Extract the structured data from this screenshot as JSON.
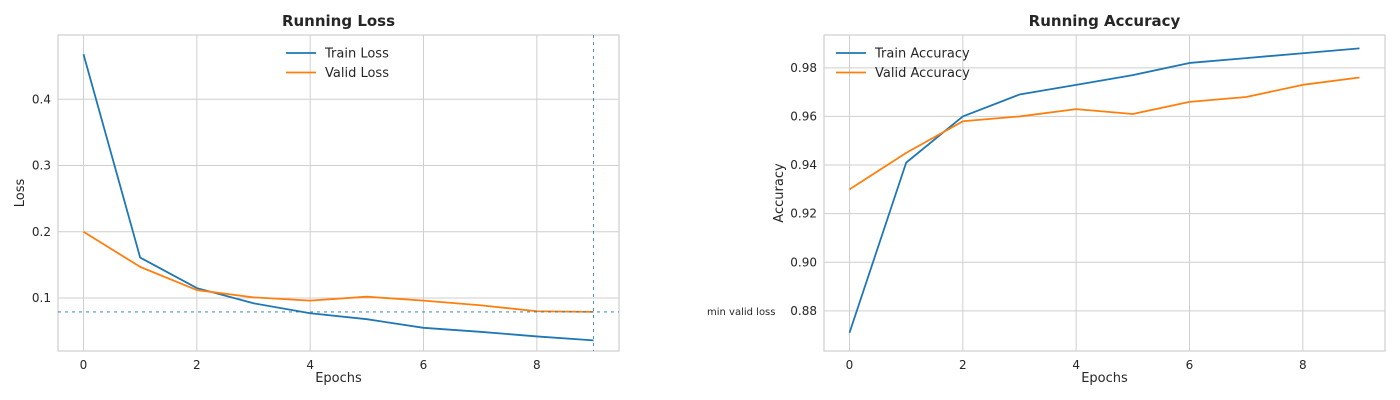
{
  "colors": {
    "train": "#1f77b4",
    "valid": "#ff7f0e",
    "grid": "#cfcfcf",
    "frame": "#cfcfcf",
    "text": "#262626"
  },
  "annotation": {
    "label": "min valid loss",
    "min_valid_loss": 0.079,
    "min_valid_epoch": 9
  },
  "chart_data": [
    {
      "type": "line",
      "title": "Running Loss",
      "xlabel": "Epochs",
      "ylabel": "Loss",
      "x": [
        0,
        1,
        2,
        3,
        4,
        5,
        6,
        7,
        8,
        9
      ],
      "xlim": [
        -0.45,
        9.45
      ],
      "ylim": [
        0.02,
        0.497
      ],
      "xticks": [
        0,
        2,
        4,
        6,
        8
      ],
      "yticks": [
        0.1,
        0.2,
        0.3,
        0.4
      ],
      "xtick_labels": [
        "0",
        "2",
        "4",
        "6",
        "8"
      ],
      "ytick_labels": [
        "0.1",
        "0.2",
        "0.3",
        "0.4"
      ],
      "grid": true,
      "legend_position": "top-center",
      "series": [
        {
          "name": "Train Loss",
          "color_key": "train",
          "values": [
            0.468,
            0.161,
            0.115,
            0.092,
            0.077,
            0.068,
            0.055,
            0.049,
            0.042,
            0.036
          ]
        },
        {
          "name": "Valid Loss",
          "color_key": "valid",
          "values": [
            0.2,
            0.147,
            0.112,
            0.101,
            0.096,
            0.102,
            0.096,
            0.089,
            0.08,
            0.079
          ]
        }
      ]
    },
    {
      "type": "line",
      "title": "Running Accuracy",
      "xlabel": "Epochs",
      "ylabel": "Accuracy",
      "x": [
        0,
        1,
        2,
        3,
        4,
        5,
        6,
        7,
        8,
        9
      ],
      "xlim": [
        -0.45,
        9.45
      ],
      "ylim": [
        0.8635,
        0.9935
      ],
      "xticks": [
        0,
        2,
        4,
        6,
        8
      ],
      "yticks": [
        0.88,
        0.9,
        0.92,
        0.94,
        0.96,
        0.98
      ],
      "xtick_labels": [
        "0",
        "2",
        "4",
        "6",
        "8"
      ],
      "ytick_labels": [
        "0.88",
        "0.90",
        "0.92",
        "0.94",
        "0.96",
        "0.98"
      ],
      "grid": true,
      "legend_position": "top-left",
      "series": [
        {
          "name": "Train Accuracy",
          "color_key": "train",
          "values": [
            0.871,
            0.941,
            0.96,
            0.969,
            0.973,
            0.977,
            0.982,
            0.984,
            0.986,
            0.988
          ]
        },
        {
          "name": "Valid Accuracy",
          "color_key": "valid",
          "values": [
            0.93,
            0.945,
            0.958,
            0.96,
            0.963,
            0.961,
            0.966,
            0.968,
            0.973,
            0.976
          ]
        }
      ]
    }
  ]
}
